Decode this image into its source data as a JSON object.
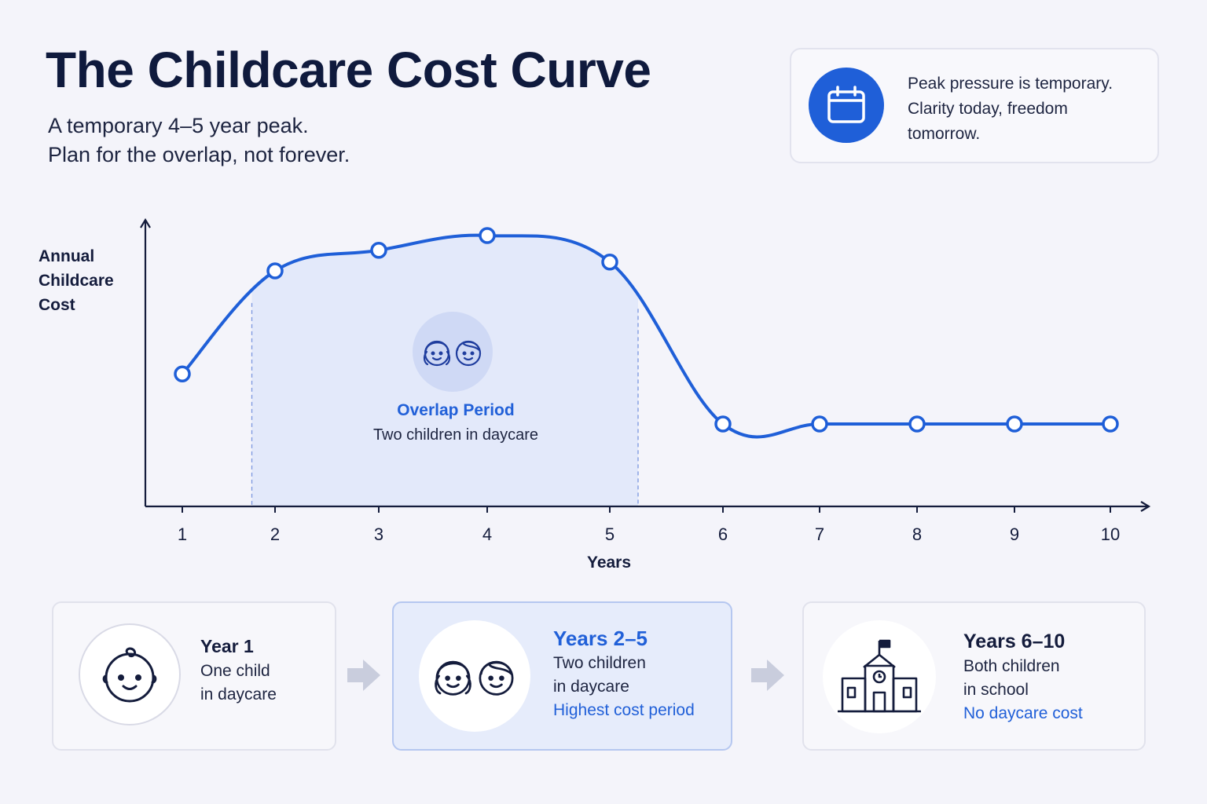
{
  "header": {
    "title": "The Childcare Cost Curve",
    "subtitle_line1": "A temporary 4–5 year peak.",
    "subtitle_line2": "Plan for the overlap, not forever."
  },
  "callout": {
    "icon": "calendar-icon",
    "line1": "Peak pressure is temporary.",
    "line2": "Clarity today, freedom",
    "line3": "tomorrow."
  },
  "chart_data": {
    "type": "line",
    "title": "",
    "xlabel": "Years",
    "ylabel_lines": [
      "Annual",
      "Childcare",
      "Cost"
    ],
    "x": [
      1,
      2,
      3,
      4,
      5,
      6,
      7,
      8,
      9,
      10
    ],
    "y": [
      45,
      80,
      87,
      92,
      83,
      28,
      28,
      28,
      28,
      28
    ],
    "ylim": [
      0,
      100
    ],
    "grid": false,
    "legend": "none",
    "line_color": "#1f5fd8",
    "shaded_region": {
      "x_start": 1.75,
      "x_end": 5.25,
      "label": "Overlap Period",
      "sublabel": "Two children in daycare",
      "icon": "two-children-icon"
    }
  },
  "cards": [
    {
      "icon": "baby-face-icon",
      "title": "Year 1",
      "line1": "One child",
      "line2": "in daycare",
      "note": ""
    },
    {
      "icon": "two-children-icon",
      "title": "Years 2–5",
      "line1": "Two children",
      "line2": "in daycare",
      "note": "Highest cost period"
    },
    {
      "icon": "school-building-icon",
      "title": "Years 6–10",
      "line1": "Both children",
      "line2": "in school",
      "note": "No daycare cost"
    }
  ],
  "colors": {
    "accent": "#1f5fd8",
    "background": "#f4f4fa",
    "shade": "#e3e9fa",
    "text_dark": "#0f1a3d"
  }
}
